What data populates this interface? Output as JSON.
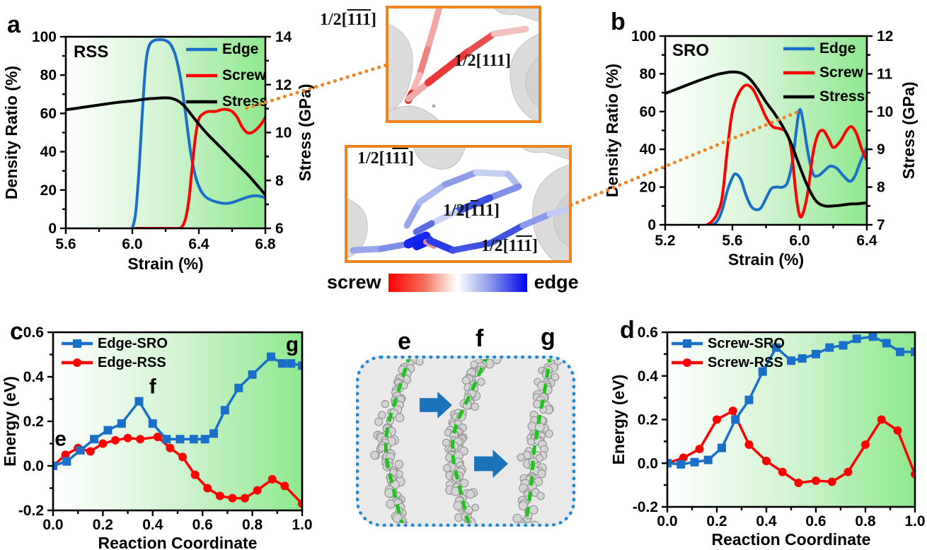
{
  "chart_data": [
    {
      "id": "a",
      "type": "line",
      "panel_label": "a",
      "corner_label": "RSS",
      "xlabel": "Strain (%)",
      "ylabel_left": "Density Ratio (%)",
      "ylabel_right": "Stress (GPa)",
      "xlim": [
        5.6,
        6.8
      ],
      "xticks": [
        5.6,
        6.0,
        6.4,
        6.8
      ],
      "xtick_labels": [
        "5.6",
        "6.0",
        "6.4",
        "6.8"
      ],
      "ylim_left": [
        0,
        100
      ],
      "yticks_left": [
        0,
        20,
        40,
        60,
        80,
        100
      ],
      "ytick_labels_left": [
        "0",
        "20",
        "40",
        "60",
        "80",
        "100"
      ],
      "ylim_right": [
        6,
        14
      ],
      "yticks_right": [
        6,
        8,
        10,
        12,
        14
      ],
      "ytick_labels_right": [
        "6",
        "8",
        "10",
        "12",
        "14"
      ],
      "bg_gradient": [
        "#ffffff",
        "#d2f3d2",
        "#8ee88e"
      ],
      "series": [
        {
          "name": "Edge",
          "color": "#1a70c8",
          "axis": "left",
          "marker": "none",
          "smooth": true,
          "width": 4,
          "x": [
            6.0,
            6.02,
            6.04,
            6.06,
            6.08,
            6.1,
            6.13,
            6.17,
            6.2,
            6.23,
            6.26,
            6.29,
            6.32,
            6.35,
            6.38,
            6.41,
            6.44,
            6.48,
            6.52,
            6.56,
            6.6,
            6.65,
            6.7,
            6.75,
            6.8
          ],
          "y": [
            0,
            8,
            30,
            60,
            85,
            95,
            98,
            98.5,
            98,
            96,
            90,
            78,
            60,
            40,
            27,
            20,
            16.5,
            14.5,
            13.5,
            13,
            13.5,
            15,
            16.5,
            17,
            16
          ]
        },
        {
          "name": "Screw",
          "color": "#fe0000",
          "axis": "left",
          "marker": "none",
          "smooth": true,
          "width": 4,
          "x": [
            6.02,
            6.1,
            6.2,
            6.28,
            6.3,
            6.32,
            6.34,
            6.36,
            6.38,
            6.4,
            6.43,
            6.46,
            6.5,
            6.54,
            6.57,
            6.6,
            6.63,
            6.66,
            6.69,
            6.72,
            6.75,
            6.78,
            6.8
          ],
          "y": [
            0,
            0,
            0,
            0,
            1,
            5,
            15,
            32,
            48,
            57,
            60,
            61,
            61,
            62,
            62,
            61,
            58,
            53,
            50,
            50,
            52,
            55,
            58
          ]
        },
        {
          "name": "Stress",
          "color": "#000000",
          "axis": "right",
          "marker": "none",
          "smooth": true,
          "width": 4,
          "x": [
            5.6,
            5.7,
            5.8,
            5.9,
            6.0,
            6.08,
            6.14,
            6.2,
            6.24,
            6.28,
            6.32,
            6.36,
            6.4,
            6.45,
            6.5,
            6.55,
            6.6,
            6.65,
            6.7,
            6.75,
            6.8
          ],
          "y": [
            10.95,
            11.05,
            11.15,
            11.25,
            11.32,
            11.4,
            11.43,
            11.45,
            11.42,
            11.3,
            11.05,
            10.7,
            10.35,
            9.95,
            9.6,
            9.25,
            8.9,
            8.55,
            8.2,
            7.8,
            7.4
          ]
        }
      ]
    },
    {
      "id": "b",
      "type": "line",
      "panel_label": "b",
      "corner_label": "SRO",
      "xlabel": "Strain (%)",
      "ylabel_left": "Density Ratio (%)",
      "ylabel_right": "Stress (GPa)",
      "xlim": [
        5.2,
        6.4
      ],
      "xticks": [
        5.2,
        5.6,
        6.0,
        6.4
      ],
      "xtick_labels": [
        "5.2",
        "5.6",
        "6.0",
        "6.4"
      ],
      "ylim_left": [
        0,
        100
      ],
      "yticks_left": [
        0,
        20,
        40,
        60,
        80,
        100
      ],
      "ytick_labels_left": [
        "0",
        "20",
        "40",
        "60",
        "80",
        "100"
      ],
      "ylim_right": [
        7,
        12
      ],
      "yticks_right": [
        7,
        8,
        9,
        10,
        11,
        12
      ],
      "ytick_labels_right": [
        "7",
        "8",
        "9",
        "10",
        "11",
        "12"
      ],
      "bg_gradient": [
        "#ffffff",
        "#d2f3d2",
        "#8ee88e"
      ],
      "series": [
        {
          "name": "Edge",
          "color": "#1a70c8",
          "axis": "left",
          "marker": "none",
          "smooth": true,
          "width": 4,
          "x": [
            5.48,
            5.51,
            5.54,
            5.57,
            5.6,
            5.62,
            5.65,
            5.68,
            5.71,
            5.74,
            5.77,
            5.8,
            5.83,
            5.86,
            5.9,
            5.93,
            5.96,
            5.98,
            6.0,
            6.02,
            6.05,
            6.08,
            6.11,
            6.14,
            6.18,
            6.22,
            6.26,
            6.3,
            6.33,
            6.36,
            6.4
          ],
          "y": [
            0,
            2,
            8,
            18,
            25,
            27,
            24,
            16,
            10,
            8,
            9,
            14,
            19,
            20,
            20,
            23,
            35,
            50,
            61,
            55,
            38,
            27,
            26,
            28,
            31,
            30,
            26,
            23,
            26,
            33,
            41
          ]
        },
        {
          "name": "Screw",
          "color": "#fe0000",
          "axis": "left",
          "marker": "none",
          "smooth": true,
          "width": 4,
          "x": [
            5.45,
            5.48,
            5.51,
            5.54,
            5.57,
            5.6,
            5.64,
            5.68,
            5.72,
            5.76,
            5.8,
            5.84,
            5.88,
            5.92,
            5.95,
            5.98,
            6.0,
            6.02,
            6.05,
            6.08,
            6.11,
            6.14,
            6.17,
            6.2,
            6.24,
            6.28,
            6.31,
            6.34,
            6.37,
            6.4
          ],
          "y": [
            0,
            2,
            6,
            15,
            40,
            60,
            70,
            74,
            72,
            65,
            57,
            52,
            51,
            49,
            40,
            15,
            5,
            6,
            18,
            38,
            48,
            50,
            46,
            41,
            44,
            50,
            52,
            48,
            40,
            34
          ]
        },
        {
          "name": "Stress",
          "color": "#000000",
          "axis": "right",
          "marker": "none",
          "smooth": true,
          "width": 4,
          "x": [
            5.2,
            5.3,
            5.4,
            5.5,
            5.55,
            5.6,
            5.65,
            5.7,
            5.75,
            5.8,
            5.85,
            5.9,
            5.95,
            6.0,
            6.05,
            6.1,
            6.15,
            6.2,
            6.25,
            6.3,
            6.35,
            6.4
          ],
          "y": [
            10.48,
            10.65,
            10.82,
            10.97,
            11.02,
            11.05,
            11.02,
            10.88,
            10.6,
            10.25,
            9.95,
            9.6,
            9.15,
            8.55,
            8.0,
            7.62,
            7.5,
            7.5,
            7.52,
            7.55,
            7.56,
            7.58
          ]
        }
      ]
    },
    {
      "id": "c",
      "type": "line",
      "panel_label": "c",
      "xlabel": "Reaction Coordinate",
      "ylabel_left": "Energy (eV)",
      "xlim": [
        0,
        1
      ],
      "xticks": [
        0,
        0.2,
        0.4,
        0.6,
        0.8,
        1.0
      ],
      "xtick_labels": [
        "0.0",
        "0.2",
        "0.4",
        "0.6",
        "0.8",
        "1.0"
      ],
      "ylim_left": [
        -0.2,
        0.6
      ],
      "yticks_left": [
        -0.2,
        0,
        0.2,
        0.4,
        0.6
      ],
      "ytick_labels_left": [
        "-0.2",
        "0.0",
        "0.2",
        "0.4",
        "0.6"
      ],
      "bg_gradient": [
        "#ffffff",
        "#d2f3d2",
        "#8ee88e"
      ],
      "annotation_color": "#1a1aff",
      "annotations": [
        {
          "x": 0.03,
          "y": 0.09,
          "text": "e"
        },
        {
          "x": 0.4,
          "y": 0.325,
          "text": "f"
        },
        {
          "x": 0.96,
          "y": 0.515,
          "text": "g"
        }
      ],
      "series": [
        {
          "name": "Edge-RSS",
          "color": "#fe0000",
          "axis": "left",
          "marker": "circle",
          "smooth": false,
          "width": 3.5,
          "x": [
            0.0,
            0.05,
            0.1,
            0.15,
            0.2,
            0.25,
            0.3,
            0.35,
            0.42,
            0.47,
            0.52,
            0.57,
            0.62,
            0.67,
            0.72,
            0.77,
            0.82,
            0.88,
            0.93,
            1.0
          ],
          "y": [
            0.0,
            0.05,
            0.08,
            0.065,
            0.1,
            0.115,
            0.125,
            0.12,
            0.13,
            0.08,
            0.04,
            -0.04,
            -0.1,
            -0.135,
            -0.145,
            -0.145,
            -0.11,
            -0.06,
            -0.09,
            -0.17
          ]
        },
        {
          "name": "Edge-SRO",
          "color": "#1a70c8",
          "axis": "left",
          "marker": "square",
          "smooth": false,
          "width": 3.5,
          "x": [
            0.0,
            0.055,
            0.11,
            0.165,
            0.22,
            0.275,
            0.345,
            0.4,
            0.455,
            0.51,
            0.565,
            0.61,
            0.645,
            0.69,
            0.745,
            0.8,
            0.875,
            0.92,
            0.955,
            1.0
          ],
          "y": [
            0.0,
            0.02,
            0.07,
            0.12,
            0.16,
            0.19,
            0.29,
            0.19,
            0.12,
            0.12,
            0.12,
            0.12,
            0.145,
            0.25,
            0.35,
            0.41,
            0.49,
            0.46,
            0.46,
            0.45
          ]
        }
      ],
      "legend_order": [
        "Edge-SRO",
        "Edge-RSS"
      ]
    },
    {
      "id": "d",
      "type": "line",
      "panel_label": "d",
      "xlabel": "Reaction Coordinate",
      "ylabel_left": "Energy (eV)",
      "xlim": [
        0,
        1
      ],
      "xticks": [
        0,
        0.2,
        0.4,
        0.6,
        0.8,
        1.0
      ],
      "xtick_labels": [
        "0.0",
        "0.2",
        "0.4",
        "0.6",
        "0.8",
        "1.0"
      ],
      "ylim_left": [
        -0.2,
        0.6
      ],
      "yticks_left": [
        -0.2,
        0,
        0.2,
        0.4,
        0.6
      ],
      "ytick_labels_left": [
        "-0.2",
        "0.0",
        "0.2",
        "0.4",
        "0.6"
      ],
      "bg_gradient": [
        "#ffffff",
        "#d2f3d2",
        "#8ee88e"
      ],
      "annotation_color": "#1a1aff",
      "annotations": [],
      "series": [
        {
          "name": "Screw-RSS",
          "color": "#fe0000",
          "axis": "left",
          "marker": "circle",
          "smooth": false,
          "width": 3.5,
          "x": [
            0.0,
            0.065,
            0.13,
            0.2,
            0.265,
            0.33,
            0.4,
            0.465,
            0.53,
            0.6,
            0.665,
            0.73,
            0.8,
            0.865,
            0.93,
            1.0
          ],
          "y": [
            0.0,
            0.025,
            0.065,
            0.2,
            0.24,
            0.085,
            0.01,
            -0.04,
            -0.09,
            -0.08,
            -0.085,
            -0.04,
            0.085,
            0.2,
            0.15,
            -0.05
          ]
        },
        {
          "name": "Screw-SRO",
          "color": "#1a70c8",
          "axis": "left",
          "marker": "square",
          "smooth": false,
          "width": 3.5,
          "x": [
            0.0,
            0.055,
            0.11,
            0.165,
            0.22,
            0.275,
            0.33,
            0.385,
            0.44,
            0.5,
            0.545,
            0.6,
            0.655,
            0.71,
            0.765,
            0.83,
            0.885,
            0.94,
            1.0
          ],
          "y": [
            0.0,
            -0.005,
            0.005,
            0.015,
            0.07,
            0.2,
            0.29,
            0.42,
            0.53,
            0.47,
            0.48,
            0.5,
            0.53,
            0.54,
            0.57,
            0.58,
            0.55,
            0.51,
            0.51
          ]
        }
      ],
      "legend_order": [
        "Screw-SRO",
        "Screw-RSS"
      ]
    }
  ],
  "dislocation_insets": {
    "screw_label_outer": {
      "runs": [
        [
          "1/2[",
          false
        ],
        [
          "111",
          true
        ],
        [
          "]",
          false
        ]
      ]
    },
    "screw_label_inner": {
      "runs": [
        [
          "1/2[111]",
          false
        ]
      ]
    },
    "edge_label_top": {
      "runs": [
        [
          "1/2[1",
          false
        ],
        [
          "11",
          true
        ],
        [
          "]",
          false
        ]
      ]
    },
    "edge_label_mid": {
      "runs": [
        [
          "1/2[",
          false
        ],
        [
          "1",
          true
        ],
        [
          "11]",
          false
        ]
      ]
    },
    "edge_label_bottom": {
      "runs": [
        [
          "1/2[1",
          false
        ],
        [
          "11",
          true
        ],
        [
          "]",
          false
        ]
      ]
    }
  },
  "colorbar": {
    "left_label": "screw",
    "right_label": "edge",
    "left_color": "#fe0000",
    "right_color": "#0000ee"
  },
  "middle_figure": {
    "labels": [
      "e",
      "f",
      "g"
    ],
    "arrow_color": "#1b74ba",
    "line_color": "#1ec41e"
  },
  "connectors": {
    "color": "#f58220",
    "lines": [
      {
        "from": [
          349,
          153
        ],
        "to": [
          546,
          92
        ]
      },
      {
        "from": [
          807,
          290
        ],
        "to": [
          1128,
          158
        ]
      }
    ]
  }
}
